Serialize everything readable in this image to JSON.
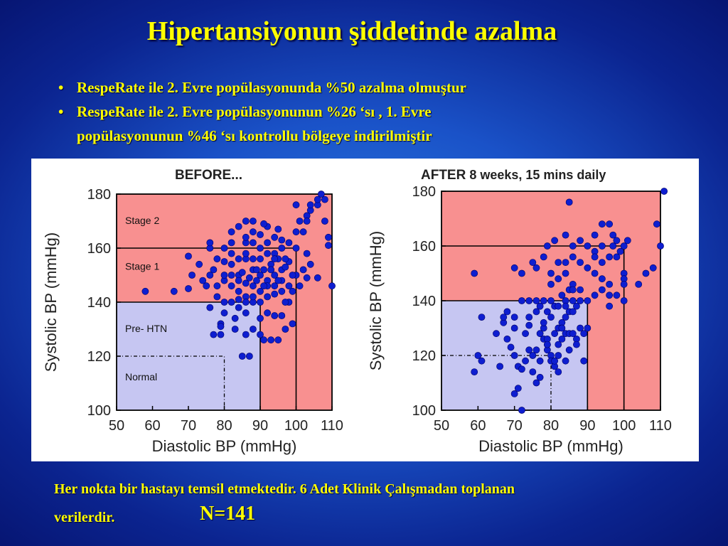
{
  "slide": {
    "title": "Hipertansiyonun şiddetinde azalma",
    "bullets": [
      {
        "dot": "•",
        "text": "RespeRate ile 2. Evre popülasyonunda %50 azalma olmuştur"
      },
      {
        "dot": "•",
        "text": "RespeRate ile 2. Evre popülasyonunun %26 ‘sı ,  1. Evre",
        "cont": "popülasyonunun %46 ‘sı kontrollu bölgeye indirilmiştir"
      }
    ],
    "footnote_line1": "Her nokta bir hastayı temsil etmektedir.   6 Adet Klinik Çalışmadan toplanan",
    "footnote_line2": "verilerdir.",
    "n_label": "N=141"
  },
  "colors": {
    "stage_red": "#f89090",
    "normal_blue": "#c6c6f2",
    "point": "#0e1ed0",
    "text_yellow": "#ffff00"
  },
  "chart_data": [
    {
      "type": "scatter",
      "title": "BEFORE...",
      "xlabel": "Diastolic BP (mmHg)",
      "ylabel": "Systolic BP (mmHg)",
      "xlim": [
        50,
        110
      ],
      "ylim": [
        100,
        180
      ],
      "xticks": [
        50,
        60,
        70,
        80,
        90,
        100,
        110
      ],
      "yticks": [
        100,
        120,
        140,
        160,
        180
      ],
      "region_labels": [
        "Stage 2",
        "Stage 1",
        "Pre- HTN",
        "Normal"
      ],
      "points": [
        [
          58,
          144
        ],
        [
          66,
          144
        ],
        [
          70,
          145
        ],
        [
          75,
          146
        ],
        [
          76,
          138
        ],
        [
          78,
          142
        ],
        [
          80,
          136
        ],
        [
          79,
          132
        ],
        [
          83,
          130
        ],
        [
          86,
          128
        ],
        [
          79,
          128
        ],
        [
          77,
          128
        ],
        [
          82,
          146
        ],
        [
          84,
          144
        ],
        [
          86,
          142
        ],
        [
          88,
          140
        ],
        [
          90,
          144
        ],
        [
          92,
          142
        ],
        [
          94,
          143
        ],
        [
          96,
          144
        ],
        [
          98,
          140
        ],
        [
          92,
          148
        ],
        [
          94,
          150
        ],
        [
          96,
          152
        ],
        [
          98,
          155
        ],
        [
          90,
          156
        ],
        [
          86,
          156
        ],
        [
          88,
          152
        ],
        [
          84,
          150
        ],
        [
          82,
          150
        ],
        [
          80,
          148
        ],
        [
          80,
          155
        ],
        [
          76,
          150
        ],
        [
          78,
          156
        ],
        [
          73,
          154
        ],
        [
          74,
          148
        ],
        [
          71,
          150
        ],
        [
          76,
          160
        ],
        [
          82,
          158
        ],
        [
          86,
          162
        ],
        [
          90,
          160
        ],
        [
          92,
          162
        ],
        [
          94,
          158
        ],
        [
          96,
          160
        ],
        [
          90,
          165
        ],
        [
          92,
          168
        ],
        [
          95,
          167
        ],
        [
          88,
          166
        ],
        [
          86,
          164
        ],
        [
          84,
          168
        ],
        [
          82,
          166
        ],
        [
          88,
          162
        ],
        [
          89,
          152
        ],
        [
          91,
          152
        ],
        [
          93,
          154
        ],
        [
          95,
          156
        ],
        [
          97,
          153
        ],
        [
          84,
          138
        ],
        [
          86,
          136
        ],
        [
          88,
          130
        ],
        [
          90,
          128
        ],
        [
          91,
          126
        ],
        [
          93,
          126
        ],
        [
          95,
          126
        ],
        [
          97,
          130
        ],
        [
          99,
          132
        ],
        [
          97,
          140
        ],
        [
          99,
          144
        ],
        [
          101,
          146
        ],
        [
          103,
          149
        ],
        [
          100,
          150
        ],
        [
          102,
          152
        ],
        [
          104,
          154
        ],
        [
          96,
          135
        ],
        [
          94,
          135
        ],
        [
          86,
          170
        ],
        [
          88,
          170
        ],
        [
          91,
          169
        ],
        [
          84,
          156
        ],
        [
          86,
          147
        ],
        [
          88,
          146
        ],
        [
          100,
          160
        ],
        [
          103,
          158
        ],
        [
          100,
          166
        ],
        [
          102,
          166
        ],
        [
          101,
          170
        ],
        [
          103,
          172
        ],
        [
          104,
          174
        ],
        [
          104,
          176
        ],
        [
          106,
          176
        ],
        [
          106,
          178
        ],
        [
          108,
          178
        ],
        [
          109,
          164
        ],
        [
          109,
          161
        ],
        [
          110,
          146
        ],
        [
          106,
          149
        ],
        [
          103,
          170
        ],
        [
          108,
          170
        ],
        [
          85,
          120
        ],
        [
          87,
          120
        ],
        [
          79,
          131
        ],
        [
          83,
          134
        ],
        [
          77,
          152
        ],
        [
          80,
          140
        ],
        [
          82,
          140
        ],
        [
          84,
          141
        ],
        [
          92,
          146
        ],
        [
          94,
          146
        ],
        [
          96,
          148
        ],
        [
          98,
          146
        ],
        [
          70,
          157
        ],
        [
          84,
          148
        ],
        [
          90,
          140
        ],
        [
          86,
          140
        ],
        [
          90,
          150
        ],
        [
          92,
          136
        ],
        [
          90,
          134
        ],
        [
          88,
          142
        ],
        [
          80,
          150
        ],
        [
          82,
          154
        ],
        [
          78,
          146
        ],
        [
          94,
          164
        ],
        [
          96,
          163
        ],
        [
          98,
          162
        ],
        [
          92,
          158
        ],
        [
          94,
          156
        ],
        [
          86,
          158
        ],
        [
          88,
          156
        ],
        [
          85,
          151
        ],
        [
          87,
          149
        ],
        [
          89,
          148
        ],
        [
          91,
          146
        ],
        [
          93,
          152
        ],
        [
          95,
          148
        ],
        [
          97,
          156
        ],
        [
          99,
          150
        ],
        [
          82,
          162
        ],
        [
          80,
          160
        ],
        [
          76,
          162
        ],
        [
          100,
          176
        ],
        [
          107,
          180
        ]
      ]
    },
    {
      "type": "scatter",
      "title": "AFTER",
      "subtitle": "8 weeks, 15 mins daily",
      "xlabel": "Diastolic BP (mmHg)",
      "ylabel": "Systolic BP (mmHg)",
      "xlim": [
        50,
        110
      ],
      "ylim": [
        100,
        180
      ],
      "xticks": [
        50,
        60,
        70,
        80,
        90,
        100,
        110
      ],
      "yticks": [
        100,
        120,
        140,
        160,
        180
      ],
      "points": [
        [
          59,
          150
        ],
        [
          61,
          134
        ],
        [
          60,
          120
        ],
        [
          59,
          114
        ],
        [
          61,
          118
        ],
        [
          65,
          128
        ],
        [
          67,
          132
        ],
        [
          67,
          134
        ],
        [
          68,
          126
        ],
        [
          69,
          123
        ],
        [
          70,
          120
        ],
        [
          71,
          116
        ],
        [
          71,
          108
        ],
        [
          72,
          100
        ],
        [
          70,
          106
        ],
        [
          72,
          115
        ],
        [
          73,
          128
        ],
        [
          74,
          131
        ],
        [
          75,
          120
        ],
        [
          76,
          122
        ],
        [
          77,
          128
        ],
        [
          77,
          118
        ],
        [
          76,
          110
        ],
        [
          78,
          130
        ],
        [
          78,
          126
        ],
        [
          79,
          122
        ],
        [
          79,
          124
        ],
        [
          79,
          126
        ],
        [
          80,
          120
        ],
        [
          80,
          118
        ],
        [
          81,
          116
        ],
        [
          81,
          118
        ],
        [
          82,
          120
        ],
        [
          82,
          124
        ],
        [
          82,
          130
        ],
        [
          83,
          132
        ],
        [
          83,
          130
        ],
        [
          84,
          128
        ],
        [
          85,
          128
        ],
        [
          86,
          128
        ],
        [
          87,
          126
        ],
        [
          84,
          134
        ],
        [
          85,
          136
        ],
        [
          86,
          140
        ],
        [
          86,
          136
        ],
        [
          87,
          138
        ],
        [
          88,
          140
        ],
        [
          88,
          130
        ],
        [
          89,
          128
        ],
        [
          90,
          130
        ],
        [
          83,
          142
        ],
        [
          84,
          140
        ],
        [
          85,
          144
        ],
        [
          86,
          146
        ],
        [
          80,
          140
        ],
        [
          78,
          140
        ],
        [
          81,
          138
        ],
        [
          79,
          136
        ],
        [
          80,
          134
        ],
        [
          76,
          136
        ],
        [
          77,
          138
        ],
        [
          72,
          140
        ],
        [
          74,
          140
        ],
        [
          76,
          140
        ],
        [
          70,
          134
        ],
        [
          74,
          134
        ],
        [
          78,
          132
        ],
        [
          82,
          138
        ],
        [
          84,
          138
        ],
        [
          86,
          144
        ],
        [
          88,
          144
        ],
        [
          90,
          140
        ],
        [
          92,
          142
        ],
        [
          94,
          144
        ],
        [
          96,
          142
        ],
        [
          98,
          142
        ],
        [
          100,
          140
        ],
        [
          96,
          146
        ],
        [
          94,
          148
        ],
        [
          92,
          150
        ],
        [
          90,
          152
        ],
        [
          88,
          154
        ],
        [
          86,
          156
        ],
        [
          84,
          150
        ],
        [
          82,
          148
        ],
        [
          80,
          150
        ],
        [
          80,
          146
        ],
        [
          82,
          154
        ],
        [
          84,
          154
        ],
        [
          86,
          160
        ],
        [
          88,
          162
        ],
        [
          92,
          158
        ],
        [
          94,
          160
        ],
        [
          97,
          160
        ],
        [
          99,
          158
        ],
        [
          100,
          150
        ],
        [
          100,
          148
        ],
        [
          100,
          146
        ],
        [
          96,
          138
        ],
        [
          92,
          156
        ],
        [
          94,
          154
        ],
        [
          96,
          156
        ],
        [
          97,
          164
        ],
        [
          98,
          162
        ],
        [
          104,
          146
        ],
        [
          106,
          150
        ],
        [
          108,
          152
        ],
        [
          110,
          160
        ],
        [
          109,
          168
        ],
        [
          111,
          180
        ],
        [
          84,
          164
        ],
        [
          85,
          176
        ],
        [
          92,
          164
        ],
        [
          94,
          168
        ],
        [
          96,
          168
        ],
        [
          81,
          162
        ],
        [
          79,
          160
        ],
        [
          78,
          156
        ],
        [
          76,
          152
        ],
        [
          75,
          154
        ],
        [
          72,
          150
        ],
        [
          70,
          152
        ],
        [
          98,
          156
        ],
        [
          100,
          160
        ],
        [
          101,
          162
        ],
        [
          90,
          160
        ],
        [
          82,
          114
        ],
        [
          84,
          118
        ],
        [
          74,
          122
        ],
        [
          68,
          136
        ],
        [
          70,
          130
        ],
        [
          66,
          116
        ],
        [
          73,
          118
        ],
        [
          75,
          114
        ],
        [
          77,
          112
        ],
        [
          79,
          124
        ],
        [
          81,
          128
        ],
        [
          83,
          126
        ],
        [
          85,
          122
        ],
        [
          87,
          124
        ],
        [
          89,
          118
        ]
      ]
    }
  ]
}
